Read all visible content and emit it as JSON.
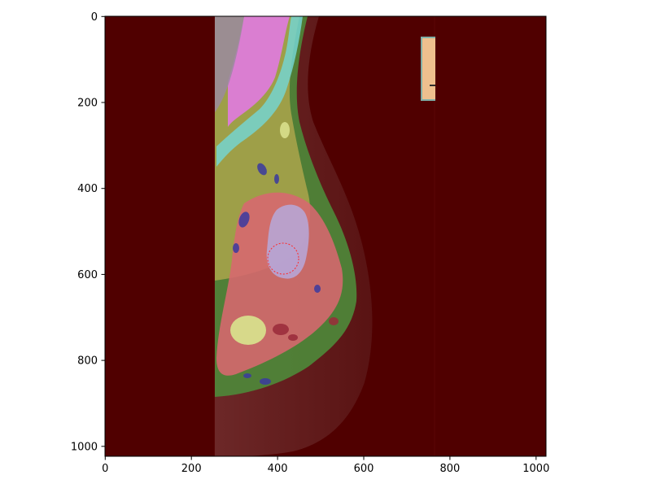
{
  "figure": {
    "x_ticks": [
      "0",
      "200",
      "400",
      "600",
      "800",
      "1000"
    ],
    "y_ticks": [
      "0",
      "200",
      "400",
      "600",
      "800",
      "1000"
    ],
    "x_range": [
      0,
      1024
    ],
    "y_range": [
      0,
      1024
    ],
    "y_axis_inverted": true
  },
  "overlay": {
    "background_color": "#500000",
    "region_colors": {
      "pectoral_magenta": "#e07ae0",
      "cyan_band": "#74d4d0",
      "olive_tissue": "#a5a24a",
      "green_tissue": "#4e8a3a",
      "pink_tissue": "#d86870",
      "lavender_lesion": "#b7a4d2",
      "yellow_patch": "#d8df8c",
      "navy_spots": "#3a3aa0",
      "marker_peach": "#eec08e"
    },
    "lesion_circle": {
      "label": "circled-lesion",
      "stroke": "#ff2a2a"
    }
  }
}
